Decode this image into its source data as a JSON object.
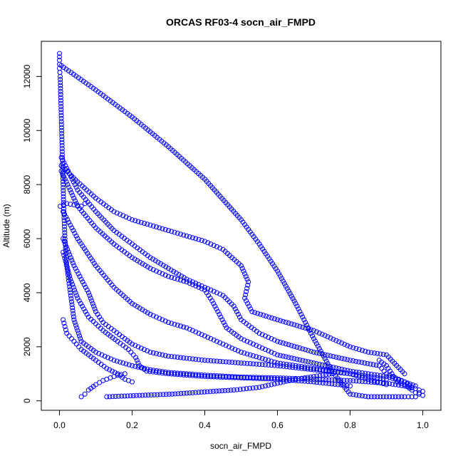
{
  "chart_data": {
    "type": "scatter",
    "title": "ORCAS RF03-4 socn_air_FMPD",
    "xlabel": "socn_air_FMPD",
    "ylabel": "Altitude (m)",
    "xlim": [
      -0.05,
      1.05
    ],
    "ylim": [
      -350,
      13300
    ],
    "x_ticks": [
      "0.0",
      "0.2",
      "0.4",
      "0.6",
      "0.8",
      "1.0"
    ],
    "x_tick_values": [
      0.0,
      0.2,
      0.4,
      0.6,
      0.8,
      1.0
    ],
    "y_ticks": [
      "0",
      "2000",
      "4000",
      "6000",
      "8000",
      "10000",
      "12000"
    ],
    "y_tick_values": [
      0,
      2000,
      4000,
      6000,
      8000,
      10000,
      12000
    ],
    "marker": "open-circle",
    "color": "#0000ff",
    "grid": false,
    "series": [
      {
        "points": [
          [
            0.0,
            12850
          ],
          [
            0.0,
            12600
          ],
          [
            0.0,
            12300
          ],
          [
            0.002,
            12000
          ],
          [
            0.004,
            11000
          ],
          [
            0.006,
            10000
          ],
          [
            0.008,
            9000
          ],
          [
            0.01,
            8000
          ],
          [
            0.012,
            7000
          ],
          [
            0.015,
            6000
          ],
          [
            0.02,
            5000
          ],
          [
            0.03,
            4000
          ],
          [
            0.04,
            3000
          ],
          [
            0.06,
            2200
          ],
          [
            0.1,
            1800
          ],
          [
            0.15,
            1500
          ],
          [
            0.2,
            1300
          ],
          [
            0.25,
            1150
          ],
          [
            0.3,
            1050
          ],
          [
            0.4,
            950
          ],
          [
            0.5,
            880
          ],
          [
            0.6,
            850
          ],
          [
            0.7,
            800
          ],
          [
            0.8,
            750
          ],
          [
            0.9,
            650
          ],
          [
            0.95,
            550
          ],
          [
            0.98,
            450
          ],
          [
            1.0,
            350
          ],
          [
            0.99,
            300
          ]
        ]
      },
      {
        "points": [
          [
            0.005,
            12400
          ],
          [
            0.1,
            11500
          ],
          [
            0.2,
            10500
          ],
          [
            0.3,
            9400
          ],
          [
            0.4,
            8200
          ],
          [
            0.5,
            6700
          ],
          [
            0.55,
            5800
          ],
          [
            0.6,
            4800
          ],
          [
            0.65,
            3600
          ],
          [
            0.7,
            2300
          ],
          [
            0.75,
            1100
          ],
          [
            0.8,
            250
          ],
          [
            0.85,
            150
          ],
          [
            0.9,
            150
          ],
          [
            0.95,
            150
          ],
          [
            0.98,
            150
          ]
        ]
      },
      {
        "points": [
          [
            0.005,
            9000
          ],
          [
            0.05,
            7800
          ],
          [
            0.1,
            7000
          ],
          [
            0.15,
            6300
          ],
          [
            0.2,
            5800
          ],
          [
            0.25,
            5300
          ],
          [
            0.3,
            4900
          ],
          [
            0.35,
            4500
          ],
          [
            0.4,
            4200
          ],
          [
            0.45,
            3900
          ],
          [
            0.48,
            3500
          ],
          [
            0.5,
            3000
          ],
          [
            0.55,
            2500
          ],
          [
            0.6,
            2200
          ],
          [
            0.7,
            1800
          ],
          [
            0.8,
            1500
          ],
          [
            0.88,
            1300
          ],
          [
            0.9,
            1000
          ],
          [
            0.95,
            700
          ],
          [
            0.97,
            500
          ]
        ]
      },
      {
        "points": [
          [
            0.005,
            8500
          ],
          [
            0.05,
            7200
          ],
          [
            0.1,
            6400
          ],
          [
            0.15,
            5800
          ],
          [
            0.2,
            5300
          ],
          [
            0.25,
            4900
          ],
          [
            0.3,
            4600
          ],
          [
            0.35,
            4400
          ],
          [
            0.4,
            4100
          ],
          [
            0.42,
            3700
          ],
          [
            0.44,
            3200
          ],
          [
            0.46,
            2700
          ],
          [
            0.5,
            2300
          ],
          [
            0.55,
            2000
          ],
          [
            0.6,
            1700
          ],
          [
            0.7,
            1400
          ],
          [
            0.8,
            1100
          ],
          [
            0.9,
            900
          ],
          [
            0.95,
            700
          ],
          [
            0.98,
            550
          ]
        ]
      },
      {
        "points": [
          [
            0.005,
            8700
          ],
          [
            0.05,
            8100
          ],
          [
            0.1,
            7500
          ],
          [
            0.15,
            7000
          ],
          [
            0.2,
            6700
          ],
          [
            0.25,
            6500
          ],
          [
            0.3,
            6300
          ],
          [
            0.35,
            6100
          ],
          [
            0.4,
            5900
          ],
          [
            0.45,
            5600
          ],
          [
            0.5,
            5000
          ],
          [
            0.52,
            4400
          ],
          [
            0.51,
            3800
          ],
          [
            0.53,
            3300
          ],
          [
            0.6,
            3000
          ],
          [
            0.7,
            2600
          ],
          [
            0.8,
            2000
          ],
          [
            0.85,
            1800
          ],
          [
            0.9,
            1700
          ],
          [
            0.95,
            1000
          ]
        ]
      },
      {
        "points": [
          [
            0.01,
            7000
          ],
          [
            0.05,
            6000
          ],
          [
            0.1,
            5000
          ],
          [
            0.15,
            4200
          ],
          [
            0.2,
            3600
          ],
          [
            0.25,
            3200
          ],
          [
            0.3,
            2900
          ],
          [
            0.35,
            2700
          ],
          [
            0.4,
            2400
          ],
          [
            0.45,
            2100
          ],
          [
            0.5,
            1800
          ],
          [
            0.55,
            1600
          ],
          [
            0.6,
            1400
          ],
          [
            0.7,
            1200
          ],
          [
            0.8,
            1000
          ],
          [
            0.85,
            800
          ],
          [
            0.9,
            600
          ]
        ]
      },
      {
        "points": [
          [
            0.01,
            6000
          ],
          [
            0.04,
            5000
          ],
          [
            0.08,
            4000
          ],
          [
            0.1,
            3300
          ],
          [
            0.12,
            2900
          ],
          [
            0.15,
            2600
          ],
          [
            0.18,
            2300
          ],
          [
            0.2,
            2100
          ],
          [
            0.25,
            1800
          ],
          [
            0.3,
            1650
          ],
          [
            0.4,
            1500
          ],
          [
            0.5,
            1400
          ],
          [
            0.6,
            1300
          ],
          [
            0.7,
            1150
          ],
          [
            0.8,
            1000
          ],
          [
            0.9,
            800
          ]
        ]
      },
      {
        "points": [
          [
            0.01,
            5500
          ],
          [
            0.03,
            4500
          ],
          [
            0.05,
            3800
          ],
          [
            0.08,
            3100
          ],
          [
            0.12,
            2600
          ],
          [
            0.16,
            2200
          ],
          [
            0.19,
            1900
          ],
          [
            0.21,
            1600
          ],
          [
            0.22,
            1300
          ],
          [
            0.24,
            1100
          ],
          [
            0.3,
            1000
          ],
          [
            0.4,
            900
          ],
          [
            0.5,
            850
          ],
          [
            0.6,
            800
          ],
          [
            0.7,
            700
          ],
          [
            0.8,
            550
          ]
        ]
      },
      {
        "points": [
          [
            0.01,
            3000
          ],
          [
            0.02,
            2500
          ],
          [
            0.04,
            2200
          ],
          [
            0.06,
            1900
          ],
          [
            0.1,
            1500
          ],
          [
            0.13,
            1200
          ],
          [
            0.16,
            1000
          ],
          [
            0.18,
            800
          ],
          [
            0.2,
            700
          ]
        ]
      },
      {
        "points": [
          [
            0.06,
            150
          ],
          [
            0.07,
            250
          ],
          [
            0.08,
            400
          ],
          [
            0.1,
            600
          ],
          [
            0.12,
            750
          ],
          [
            0.14,
            850
          ],
          [
            0.16,
            950
          ],
          [
            0.18,
            1000
          ]
        ]
      },
      {
        "points": [
          [
            0.13,
            150
          ],
          [
            0.31,
            250
          ],
          [
            0.48,
            400
          ],
          [
            0.55,
            500
          ],
          [
            0.6,
            650
          ],
          [
            0.65,
            800
          ],
          [
            0.7,
            900
          ],
          [
            0.75,
            1000
          ]
        ]
      },
      {
        "points": [
          [
            0.002,
            7200
          ],
          [
            0.02,
            7300
          ],
          [
            0.04,
            7250
          ],
          [
            0.06,
            7200
          ],
          [
            0.07,
            7300
          ]
        ]
      },
      {
        "points": [
          [
            0.88,
            1500
          ],
          [
            0.9,
            1300
          ],
          [
            0.91,
            1100
          ],
          [
            0.92,
            900
          ],
          [
            0.93,
            700
          ],
          [
            0.95,
            600
          ],
          [
            0.97,
            400
          ],
          [
            0.98,
            300
          ],
          [
            0.99,
            250
          ],
          [
            1.0,
            200
          ]
        ]
      }
    ]
  }
}
